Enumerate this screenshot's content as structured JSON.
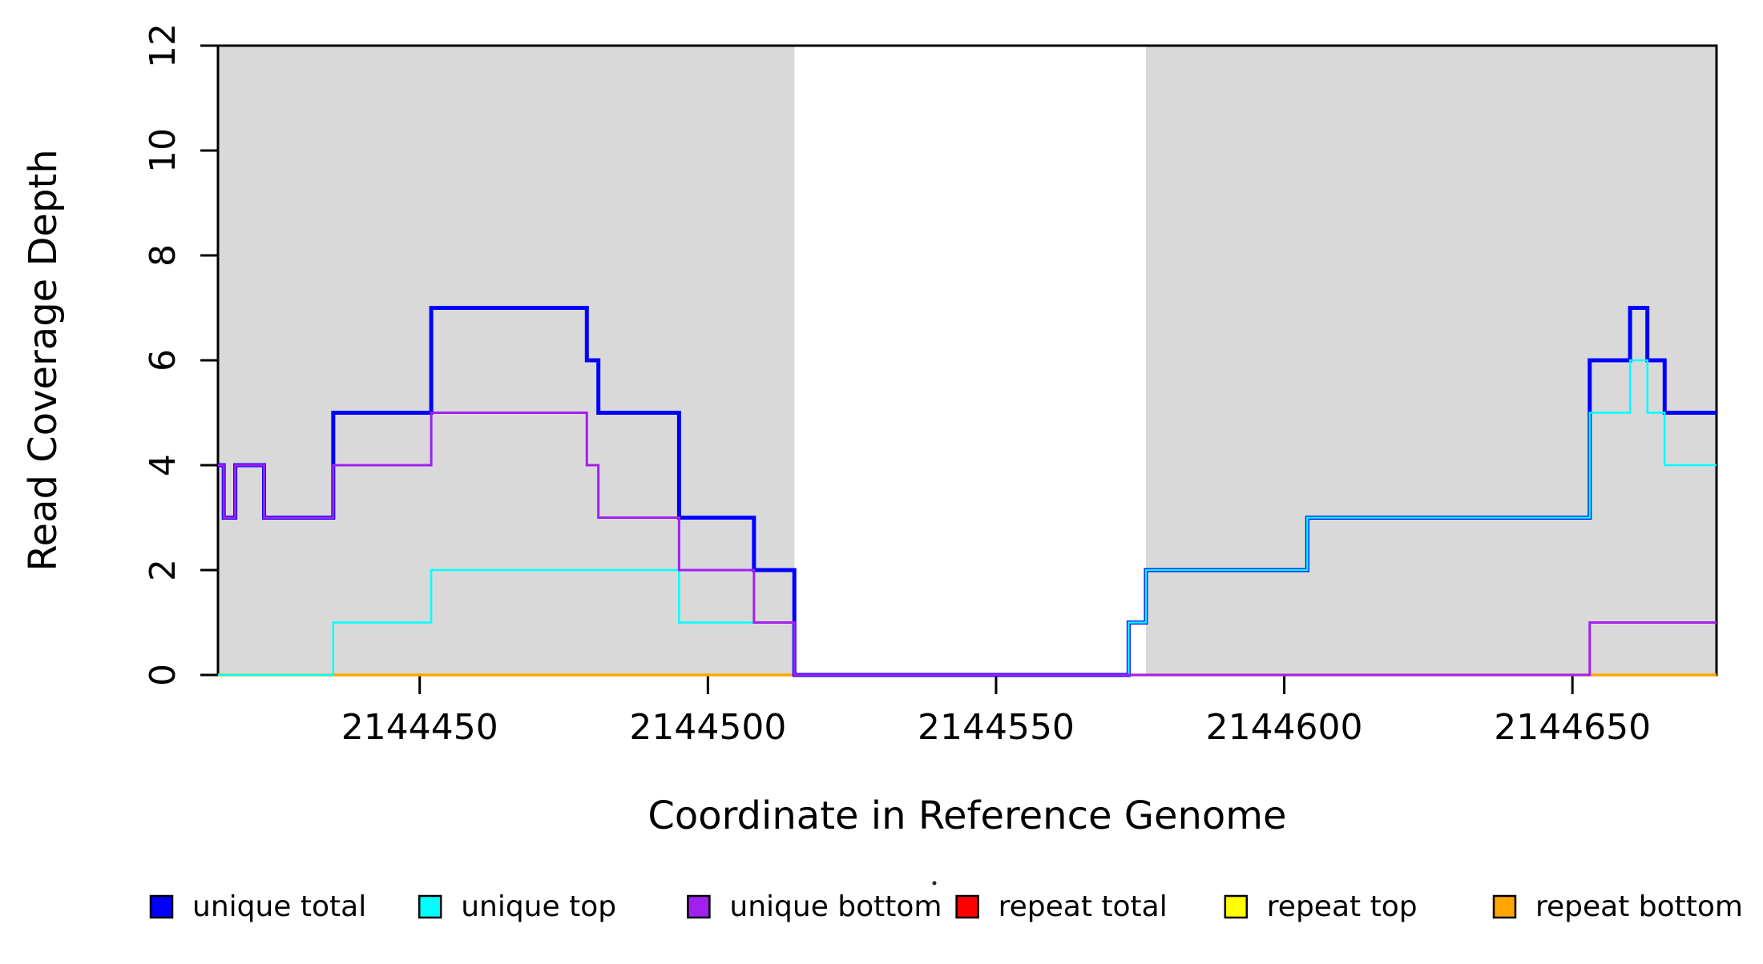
{
  "chart_data": {
    "type": "line",
    "subtype": "step-coverage-plot",
    "title": "",
    "xlabel": "Coordinate in Reference Genome",
    "ylabel": "Read Coverage Depth",
    "xlim": [
      2144415,
      2144675
    ],
    "ylim": [
      0,
      12
    ],
    "x_ticks": [
      "2144450",
      "2144500",
      "2144550",
      "2144600",
      "2144650"
    ],
    "x_tick_values": [
      2144450,
      2144500,
      2144550,
      2144600,
      2144650
    ],
    "y_ticks": [
      "0",
      "2",
      "4",
      "6",
      "8",
      "10",
      "12"
    ],
    "y_tick_values": [
      0,
      2,
      4,
      6,
      8,
      10,
      12
    ],
    "grid": false,
    "background_color": "#ffffff",
    "shaded_region_color": "#d9d9d9",
    "axis_color": "#000000",
    "shaded_regions": [
      {
        "x0": 2144415,
        "x1": 2144515
      },
      {
        "x0": 2144576,
        "x1": 2144675
      }
    ],
    "series": [
      {
        "name": "repeat total",
        "color": "#ff0000",
        "width": 2.5,
        "segments": [
          {
            "x0": 2144415,
            "x1": 2144675,
            "y": 0
          }
        ]
      },
      {
        "name": "repeat top",
        "color": "#ffff00",
        "width": 2.5,
        "segments": [
          {
            "x0": 2144415,
            "x1": 2144675,
            "y": 0
          }
        ]
      },
      {
        "name": "repeat bottom",
        "color": "#ffa500",
        "width": 3.5,
        "segments": [
          {
            "x0": 2144415,
            "x1": 2144675,
            "y": 0
          }
        ]
      },
      {
        "name": "unique total",
        "color": "#0000ff",
        "width": 5,
        "segments": [
          {
            "x0": 2144415,
            "x1": 2144416,
            "y": 4
          },
          {
            "x0": 2144416,
            "x1": 2144418,
            "y": 3
          },
          {
            "x0": 2144418,
            "x1": 2144423,
            "y": 4
          },
          {
            "x0": 2144423,
            "x1": 2144435,
            "y": 3
          },
          {
            "x0": 2144435,
            "x1": 2144452,
            "y": 5
          },
          {
            "x0": 2144452,
            "x1": 2144479,
            "y": 7
          },
          {
            "x0": 2144479,
            "x1": 2144481,
            "y": 6
          },
          {
            "x0": 2144481,
            "x1": 2144495,
            "y": 5
          },
          {
            "x0": 2144495,
            "x1": 2144508,
            "y": 3
          },
          {
            "x0": 2144508,
            "x1": 2144515,
            "y": 2
          },
          {
            "x0": 2144515,
            "x1": 2144573,
            "y": 0
          },
          {
            "x0": 2144573,
            "x1": 2144576,
            "y": 1
          },
          {
            "x0": 2144576,
            "x1": 2144604,
            "y": 2
          },
          {
            "x0": 2144604,
            "x1": 2144653,
            "y": 3
          },
          {
            "x0": 2144653,
            "x1": 2144660,
            "y": 6
          },
          {
            "x0": 2144660,
            "x1": 2144663,
            "y": 7
          },
          {
            "x0": 2144663,
            "x1": 2144666,
            "y": 6
          },
          {
            "x0": 2144666,
            "x1": 2144675,
            "y": 5
          }
        ]
      },
      {
        "name": "unique top",
        "color": "#00ffff",
        "width": 2.5,
        "segments": [
          {
            "x0": 2144415,
            "x1": 2144435,
            "y": 0
          },
          {
            "x0": 2144435,
            "x1": 2144452,
            "y": 1
          },
          {
            "x0": 2144452,
            "x1": 2144495,
            "y": 2
          },
          {
            "x0": 2144495,
            "x1": 2144515,
            "y": 1
          },
          {
            "x0": 2144515,
            "x1": 2144573,
            "y": 0
          },
          {
            "x0": 2144573,
            "x1": 2144576,
            "y": 1
          },
          {
            "x0": 2144576,
            "x1": 2144604,
            "y": 2
          },
          {
            "x0": 2144604,
            "x1": 2144653,
            "y": 3
          },
          {
            "x0": 2144653,
            "x1": 2144660,
            "y": 5
          },
          {
            "x0": 2144660,
            "x1": 2144663,
            "y": 6
          },
          {
            "x0": 2144663,
            "x1": 2144666,
            "y": 5
          },
          {
            "x0": 2144666,
            "x1": 2144675,
            "y": 4
          }
        ]
      },
      {
        "name": "unique bottom",
        "color": "#a020f0",
        "width": 3,
        "segments": [
          {
            "x0": 2144415,
            "x1": 2144416,
            "y": 4
          },
          {
            "x0": 2144416,
            "x1": 2144418,
            "y": 3
          },
          {
            "x0": 2144418,
            "x1": 2144423,
            "y": 4
          },
          {
            "x0": 2144423,
            "x1": 2144435,
            "y": 3
          },
          {
            "x0": 2144435,
            "x1": 2144452,
            "y": 4
          },
          {
            "x0": 2144452,
            "x1": 2144479,
            "y": 5
          },
          {
            "x0": 2144479,
            "x1": 2144481,
            "y": 4
          },
          {
            "x0": 2144481,
            "x1": 2144495,
            "y": 3
          },
          {
            "x0": 2144495,
            "x1": 2144508,
            "y": 2
          },
          {
            "x0": 2144508,
            "x1": 2144515,
            "y": 1
          },
          {
            "x0": 2144515,
            "x1": 2144653,
            "y": 0
          },
          {
            "x0": 2144653,
            "x1": 2144675,
            "y": 1
          }
        ]
      }
    ],
    "legend": {
      "position": "bottom",
      "entries": [
        {
          "label": "unique total",
          "color": "#0000ff"
        },
        {
          "label": "unique top",
          "color": "#00ffff"
        },
        {
          "label": "unique bottom",
          "color": "#a020f0"
        },
        {
          "label": "repeat total",
          "color": "#ff0000"
        },
        {
          "label": "repeat top",
          "color": "#ffff00"
        },
        {
          "label": "repeat bottom",
          "color": "#ffa500"
        }
      ]
    }
  }
}
